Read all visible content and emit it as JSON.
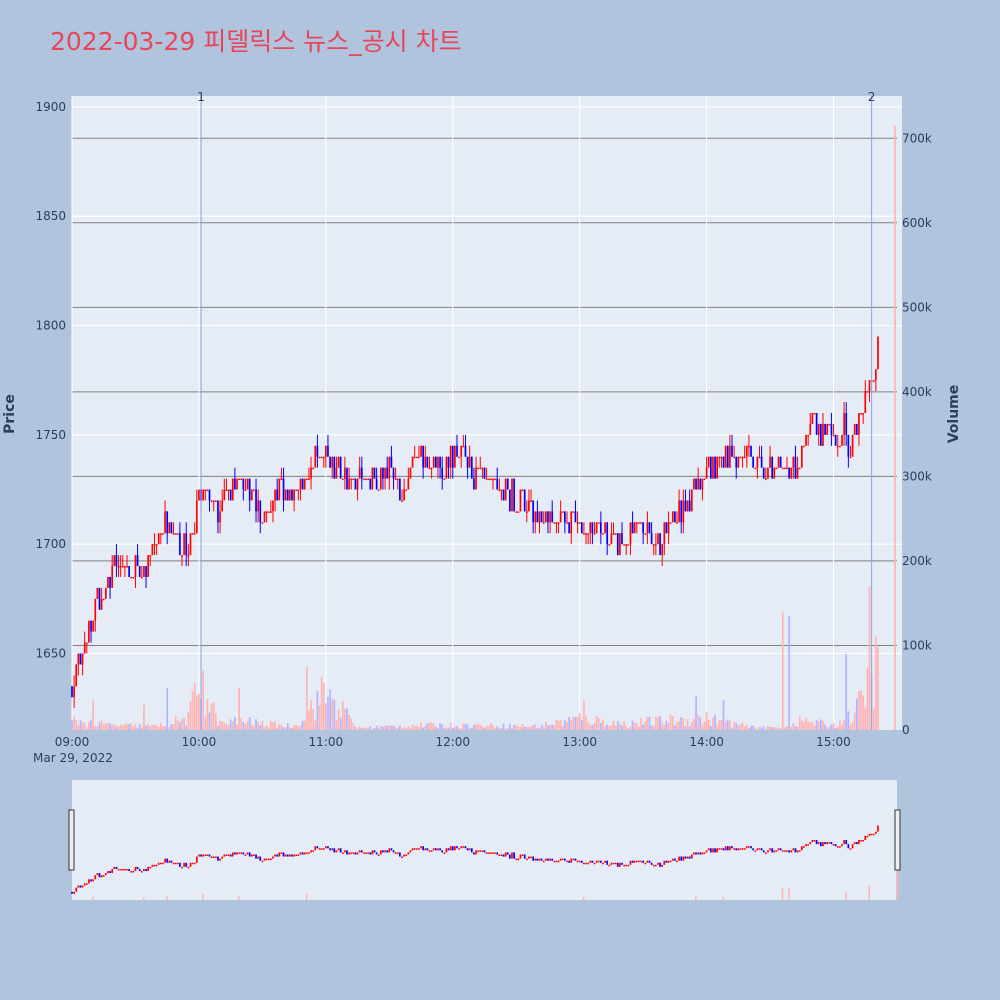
{
  "title": "2022-03-29 피델릭스 뉴스_공시 차트",
  "colors": {
    "page_bg": "#b0c4de",
    "plot_bg": "#e5ecf6",
    "title": "#e8455a",
    "up": "#ff0000",
    "down": "#0000ff",
    "up_volume": "#ffb3b3",
    "down_volume": "#b3b3ff",
    "grid": "#ffffff",
    "volume_grid": "#808080",
    "marker_line": "#8da0e6",
    "text": "#2a3f5f"
  },
  "chart_data": {
    "type": "candlestick",
    "title": "2022-03-29 피델릭스 뉴스_공시 차트",
    "ylabel": "Price",
    "y2label": "Volume",
    "date_label": "Mar 29, 2022",
    "x_ticks": [
      "09:00",
      "10:00",
      "11:00",
      "12:00",
      "13:00",
      "14:00",
      "15:00"
    ],
    "y_ticks": [
      1650,
      1700,
      1750,
      1800,
      1850,
      1900
    ],
    "y2_ticks": [
      {
        "value": 0,
        "label": "0"
      },
      {
        "value": 100000,
        "label": "100k"
      },
      {
        "value": 200000,
        "label": "200k"
      },
      {
        "value": 300000,
        "label": "300k"
      },
      {
        "value": 400000,
        "label": "400k"
      },
      {
        "value": 500000,
        "label": "500k"
      },
      {
        "value": 600000,
        "label": "600k"
      },
      {
        "value": 700000,
        "label": "700k"
      }
    ],
    "x_range": [
      "09:00",
      "15:30"
    ],
    "y_range": [
      1615,
      1905
    ],
    "y2_range": [
      0,
      750000
    ],
    "grid": true,
    "range_slider": true,
    "markers": [
      {
        "label": "1",
        "time": "10:01"
      },
      {
        "label": "2",
        "time": "15:18"
      }
    ],
    "price_path": [
      [
        "09:00",
        1635
      ],
      [
        "09:03",
        1645
      ],
      [
        "09:05",
        1655
      ],
      [
        "09:10",
        1660
      ],
      [
        "09:12",
        1675
      ],
      [
        "09:16",
        1678
      ],
      [
        "09:20",
        1692
      ],
      [
        "09:24",
        1688
      ],
      [
        "09:27",
        1685
      ],
      [
        "09:30",
        1690
      ],
      [
        "09:34",
        1690
      ],
      [
        "09:37",
        1695
      ],
      [
        "09:40",
        1705
      ],
      [
        "09:44",
        1710
      ],
      [
        "09:48",
        1700
      ],
      [
        "09:50",
        1705
      ],
      [
        "09:53",
        1698
      ],
      [
        "09:57",
        1705
      ],
      [
        "10:00",
        1718
      ],
      [
        "10:03",
        1725
      ],
      [
        "10:06",
        1718
      ],
      [
        "10:09",
        1710
      ],
      [
        "10:12",
        1718
      ],
      [
        "10:16",
        1728
      ],
      [
        "10:20",
        1735
      ],
      [
        "10:23",
        1725
      ],
      [
        "10:27",
        1718
      ],
      [
        "10:30",
        1712
      ],
      [
        "10:34",
        1720
      ],
      [
        "10:38",
        1728
      ],
      [
        "10:43",
        1722
      ],
      [
        "10:47",
        1730
      ],
      [
        "10:52",
        1728
      ],
      [
        "10:56",
        1740
      ],
      [
        "11:00",
        1742
      ],
      [
        "11:05",
        1735
      ],
      [
        "11:10",
        1732
      ],
      [
        "11:15",
        1732
      ],
      [
        "11:20",
        1730
      ],
      [
        "11:24",
        1725
      ],
      [
        "11:28",
        1735
      ],
      [
        "11:32",
        1732
      ],
      [
        "11:36",
        1725
      ],
      [
        "11:40",
        1736
      ],
      [
        "11:45",
        1738
      ],
      [
        "11:50",
        1737
      ],
      [
        "11:55",
        1735
      ],
      [
        "12:00",
        1740
      ],
      [
        "12:05",
        1738
      ],
      [
        "12:10",
        1732
      ],
      [
        "12:15",
        1728
      ],
      [
        "12:20",
        1725
      ],
      [
        "12:25",
        1725
      ],
      [
        "12:30",
        1720
      ],
      [
        "12:35",
        1718
      ],
      [
        "12:40",
        1715
      ],
      [
        "12:45",
        1712
      ],
      [
        "12:50",
        1715
      ],
      [
        "12:55",
        1712
      ],
      [
        "13:00",
        1710
      ],
      [
        "13:05",
        1705
      ],
      [
        "13:10",
        1708
      ],
      [
        "13:15",
        1702
      ],
      [
        "13:20",
        1700
      ],
      [
        "13:25",
        1705
      ],
      [
        "13:30",
        1708
      ],
      [
        "13:35",
        1700
      ],
      [
        "13:40",
        1705
      ],
      [
        "13:45",
        1712
      ],
      [
        "13:50",
        1718
      ],
      [
        "13:55",
        1728
      ],
      [
        "14:00",
        1738
      ],
      [
        "14:05",
        1735
      ],
      [
        "14:10",
        1742
      ],
      [
        "14:15",
        1738
      ],
      [
        "14:20",
        1745
      ],
      [
        "14:25",
        1735
      ],
      [
        "14:30",
        1738
      ],
      [
        "14:35",
        1732
      ],
      [
        "14:40",
        1736
      ],
      [
        "14:45",
        1738
      ],
      [
        "14:50",
        1755
      ],
      [
        "14:55",
        1752
      ],
      [
        "15:00",
        1748
      ],
      [
        "15:05",
        1752
      ],
      [
        "15:08",
        1745
      ],
      [
        "15:12",
        1760
      ],
      [
        "15:16",
        1770
      ],
      [
        "15:19",
        1775
      ],
      [
        "15:21",
        1788
      ]
    ],
    "volume_path": [
      [
        "09:00",
        12000
      ],
      [
        "09:20",
        6000
      ],
      [
        "09:40",
        5000
      ],
      [
        "09:55",
        15000
      ],
      [
        "10:00",
        60000
      ],
      [
        "10:10",
        8000
      ],
      [
        "10:20",
        12000
      ],
      [
        "10:30",
        8000
      ],
      [
        "10:45",
        5000
      ],
      [
        "11:00",
        50000
      ],
      [
        "11:15",
        3000
      ],
      [
        "11:45",
        6000
      ],
      [
        "12:10",
        6000
      ],
      [
        "12:40",
        5000
      ],
      [
        "13:00",
        15000
      ],
      [
        "13:20",
        8000
      ],
      [
        "13:40",
        12000
      ],
      [
        "14:00",
        15000
      ],
      [
        "14:20",
        4000
      ],
      [
        "14:35",
        3000
      ],
      [
        "14:45",
        12000
      ],
      [
        "15:00",
        6000
      ],
      [
        "15:10",
        20000
      ],
      [
        "15:20",
        80000
      ]
    ],
    "volume_spikes": [
      {
        "time": "09:10",
        "value": 35000
      },
      {
        "time": "09:34",
        "value": 30000
      },
      {
        "time": "09:45",
        "value": 50000
      },
      {
        "time": "10:02",
        "value": 70000
      },
      {
        "time": "10:19",
        "value": 50000
      },
      {
        "time": "10:51",
        "value": 75000
      },
      {
        "time": "13:02",
        "value": 35000
      },
      {
        "time": "13:55",
        "value": 40000
      },
      {
        "time": "14:08",
        "value": 35000
      },
      {
        "time": "14:36",
        "value": 140000
      },
      {
        "time": "14:39",
        "value": 135000
      },
      {
        "time": "15:06",
        "value": 90000
      },
      {
        "time": "15:17",
        "value": 170000
      },
      {
        "time": "15:30",
        "value": 715000
      }
    ]
  }
}
